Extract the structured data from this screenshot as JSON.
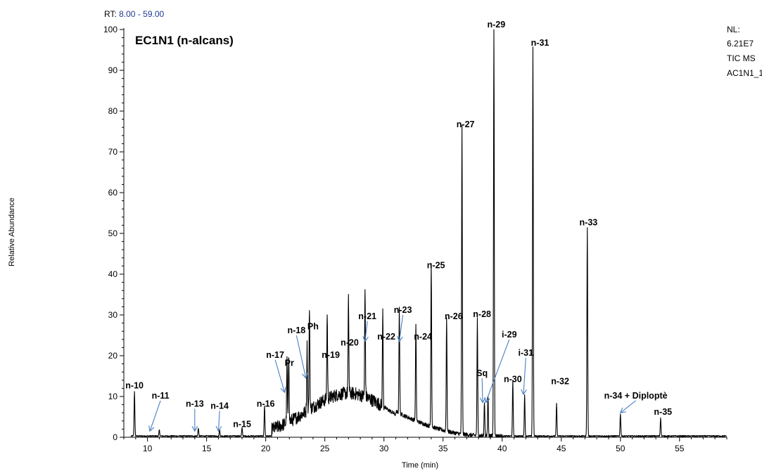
{
  "header": {
    "rt_prefix": "RT: ",
    "rt_value": "8.00 - 59.00",
    "rt_value_color": "#1f3a93",
    "nl_label": "NL:",
    "nl_value": "6.21E7",
    "trace_type": "TIC  MS",
    "file_name": "AC1N1_1"
  },
  "chart_data": {
    "type": "line",
    "title": "EC1N1 (n-alcans)",
    "xlabel": "Time (min)",
    "ylabel": "Relative Abundance",
    "xlim": [
      8,
      59
    ],
    "ylim": [
      0,
      100
    ],
    "x_ticks": [
      10,
      15,
      20,
      25,
      30,
      35,
      40,
      45,
      50,
      55
    ],
    "y_ticks": [
      0,
      10,
      20,
      30,
      40,
      50,
      60,
      70,
      80,
      90,
      100
    ],
    "line_color": "#000000",
    "arrow_color": "#4a7fc1",
    "peaks": [
      {
        "label": "n-10",
        "rt": 8.9,
        "height": 11
      },
      {
        "label": "n-11",
        "rt": 11.0,
        "height": 1.5
      },
      {
        "label": "n-13",
        "rt": 14.3,
        "height": 2
      },
      {
        "label": "n-14",
        "rt": 16.1,
        "height": 1.5
      },
      {
        "label": "n-15",
        "rt": 18.0,
        "height": 2
      },
      {
        "label": "n-16",
        "rt": 19.9,
        "height": 7.5
      },
      {
        "label": "n-17",
        "rt": 21.8,
        "height": 15
      },
      {
        "label": "Pr",
        "rt": 21.95,
        "height": 17
      },
      {
        "label": "n-18",
        "rt": 23.5,
        "height": 16
      },
      {
        "label": "Ph",
        "rt": 23.7,
        "height": 25.5
      },
      {
        "label": "n-19",
        "rt": 25.2,
        "height": 21
      },
      {
        "label": "n-20",
        "rt": 27.0,
        "height": 23
      },
      {
        "label": "n-21",
        "rt": 28.4,
        "height": 26
      },
      {
        "label": "n-22",
        "rt": 29.9,
        "height": 23
      },
      {
        "label": "n-23",
        "rt": 31.3,
        "height": 26
      },
      {
        "label": "n-24",
        "rt": 32.7,
        "height": 23.5
      },
      {
        "label": "n-25",
        "rt": 34.0,
        "height": 40.5
      },
      {
        "label": "n-26",
        "rt": 35.3,
        "height": 28
      },
      {
        "label": "n-27",
        "rt": 36.6,
        "height": 75.5
      },
      {
        "label": "n-28",
        "rt": 37.9,
        "height": 28.5
      },
      {
        "label": "Sq",
        "rt": 38.5,
        "height": 8.5
      },
      {
        "label": "i-29",
        "rt": 38.8,
        "height": 10
      },
      {
        "label": "n-29",
        "rt": 39.3,
        "height": 100
      },
      {
        "label": "n-30",
        "rt": 40.9,
        "height": 13.5
      },
      {
        "label": "i-31",
        "rt": 41.9,
        "height": 10
      },
      {
        "label": "n-31",
        "rt": 42.6,
        "height": 95.5
      },
      {
        "label": "n-32",
        "rt": 44.6,
        "height": 8
      },
      {
        "label": "n-33",
        "rt": 47.2,
        "height": 51
      },
      {
        "label": "n-34 + Diploptè",
        "rt": 50.0,
        "height": 5.5
      },
      {
        "label": "n-35",
        "rt": 53.4,
        "height": 4.5
      }
    ],
    "labels": [
      {
        "text": "n-10",
        "rt": 8.9,
        "y": 12,
        "arrow": false
      },
      {
        "text": "n-11",
        "rt": 11.1,
        "y": 9.5,
        "arrow": true,
        "arrow_to_rt": 10.2,
        "arrow_to_y": 1.5
      },
      {
        "text": "n-13",
        "rt": 14.0,
        "y": 7.5,
        "arrow": true,
        "arrow_to_rt": 14.0,
        "arrow_to_y": 1.5
      },
      {
        "text": "n-14",
        "rt": 16.1,
        "y": 7.0,
        "arrow": true,
        "arrow_to_rt": 16.0,
        "arrow_to_y": 1.5
      },
      {
        "text": "n-15",
        "rt": 18.0,
        "y": 2.5,
        "arrow": false
      },
      {
        "text": "n-16",
        "rt": 20.0,
        "y": 7.5,
        "arrow": false
      },
      {
        "text": "n-17",
        "rt": 20.8,
        "y": 19.5,
        "arrow": true,
        "arrow_to_rt": 21.6,
        "arrow_to_y": 11
      },
      {
        "text": "Pr",
        "rt": 22.0,
        "y": 17.5,
        "arrow": false
      },
      {
        "text": "n-18",
        "rt": 22.6,
        "y": 25.5,
        "arrow": true,
        "arrow_to_rt": 23.4,
        "arrow_to_y": 14.5
      },
      {
        "text": "Ph",
        "rt": 24.0,
        "y": 26.5,
        "arrow": false
      },
      {
        "text": "n-19",
        "rt": 25.5,
        "y": 19.5,
        "arrow": false
      },
      {
        "text": "n-20",
        "rt": 27.1,
        "y": 22.5,
        "arrow": false
      },
      {
        "text": "n-21",
        "rt": 28.6,
        "y": 29.0,
        "arrow": true,
        "arrow_to_rt": 28.4,
        "arrow_to_y": 23.5
      },
      {
        "text": "n-22",
        "rt": 30.2,
        "y": 24.0,
        "arrow": false
      },
      {
        "text": "n-23",
        "rt": 31.6,
        "y": 30.5,
        "arrow": true,
        "arrow_to_rt": 31.3,
        "arrow_to_y": 23.5
      },
      {
        "text": "n-24",
        "rt": 33.3,
        "y": 24.0,
        "arrow": false
      },
      {
        "text": "n-25",
        "rt": 34.4,
        "y": 41.5,
        "arrow": false
      },
      {
        "text": "n-26",
        "rt": 35.9,
        "y": 29.0,
        "arrow": false
      },
      {
        "text": "n-27",
        "rt": 36.9,
        "y": 76.0,
        "arrow": false
      },
      {
        "text": "n-28",
        "rt": 38.3,
        "y": 29.5,
        "arrow": false
      },
      {
        "text": "Sq",
        "rt": 38.3,
        "y": 15.0,
        "arrow": true,
        "arrow_to_rt": 38.35,
        "arrow_to_y": 8.5
      },
      {
        "text": "i-29",
        "rt": 40.6,
        "y": 24.5,
        "arrow": true,
        "arrow_to_rt": 38.6,
        "arrow_to_y": 8.5
      },
      {
        "text": "n-29",
        "rt": 39.5,
        "y": 100.5,
        "arrow": false
      },
      {
        "text": "n-30",
        "rt": 40.9,
        "y": 13.5,
        "arrow": false
      },
      {
        "text": "i-31",
        "rt": 42.0,
        "y": 20.0,
        "arrow": true,
        "arrow_to_rt": 41.8,
        "arrow_to_y": 10.5
      },
      {
        "text": "n-31",
        "rt": 43.2,
        "y": 96.0,
        "arrow": false
      },
      {
        "text": "n-32",
        "rt": 44.9,
        "y": 13.0,
        "arrow": false
      },
      {
        "text": "n-33",
        "rt": 47.3,
        "y": 52.0,
        "arrow": false
      },
      {
        "text": "n-34 + Diploptè",
        "rt": 51.3,
        "y": 9.5,
        "arrow": true,
        "arrow_to_rt": 50.0,
        "arrow_to_y": 6.0
      },
      {
        "text": "n-35",
        "rt": 53.6,
        "y": 5.5,
        "arrow": false
      }
    ]
  }
}
